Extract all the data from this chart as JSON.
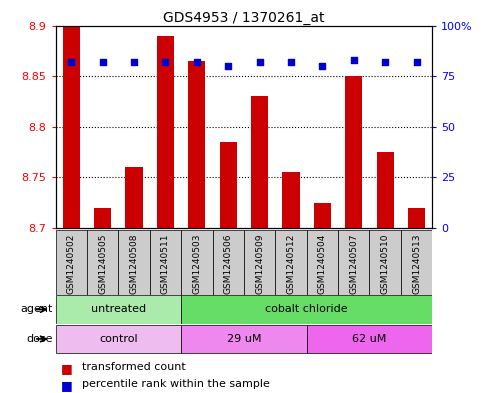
{
  "title": "GDS4953 / 1370261_at",
  "samples": [
    "GSM1240502",
    "GSM1240505",
    "GSM1240508",
    "GSM1240511",
    "GSM1240503",
    "GSM1240506",
    "GSM1240509",
    "GSM1240512",
    "GSM1240504",
    "GSM1240507",
    "GSM1240510",
    "GSM1240513"
  ],
  "transformed_counts": [
    8.9,
    8.72,
    8.76,
    8.89,
    8.865,
    8.785,
    8.83,
    8.755,
    8.725,
    8.85,
    8.775,
    8.72
  ],
  "percentile_ranks": [
    82,
    82,
    82,
    82,
    82,
    80,
    82,
    82,
    80,
    83,
    82,
    82
  ],
  "ylim_left": [
    8.7,
    8.9
  ],
  "ylim_right": [
    0,
    100
  ],
  "yticks_left": [
    8.7,
    8.75,
    8.8,
    8.85,
    8.9
  ],
  "yticks_right": [
    0,
    25,
    50,
    75,
    100
  ],
  "ytick_labels_right": [
    "0",
    "25",
    "50",
    "75",
    "100%"
  ],
  "bar_color": "#cc0000",
  "dot_color": "#0000cc",
  "bar_bottom": 8.7,
  "agent_labels": [
    {
      "label": "untreated",
      "start": 0,
      "end": 4,
      "color": "#aaeaaa"
    },
    {
      "label": "cobalt chloride",
      "start": 4,
      "end": 12,
      "color": "#66dd66"
    }
  ],
  "dose_labels": [
    {
      "label": "control",
      "start": 0,
      "end": 4,
      "color": "#eebcee"
    },
    {
      "label": "29 uM",
      "start": 4,
      "end": 8,
      "color": "#ee88ee"
    },
    {
      "label": "62 uM",
      "start": 8,
      "end": 12,
      "color": "#ee66ee"
    }
  ],
  "legend_bar_label": "transformed count",
  "legend_dot_label": "percentile rank within the sample",
  "bar_width": 0.55,
  "agent_row_label": "agent",
  "dose_row_label": "dose",
  "sample_box_color": "#cccccc",
  "grid_color": "#000000"
}
